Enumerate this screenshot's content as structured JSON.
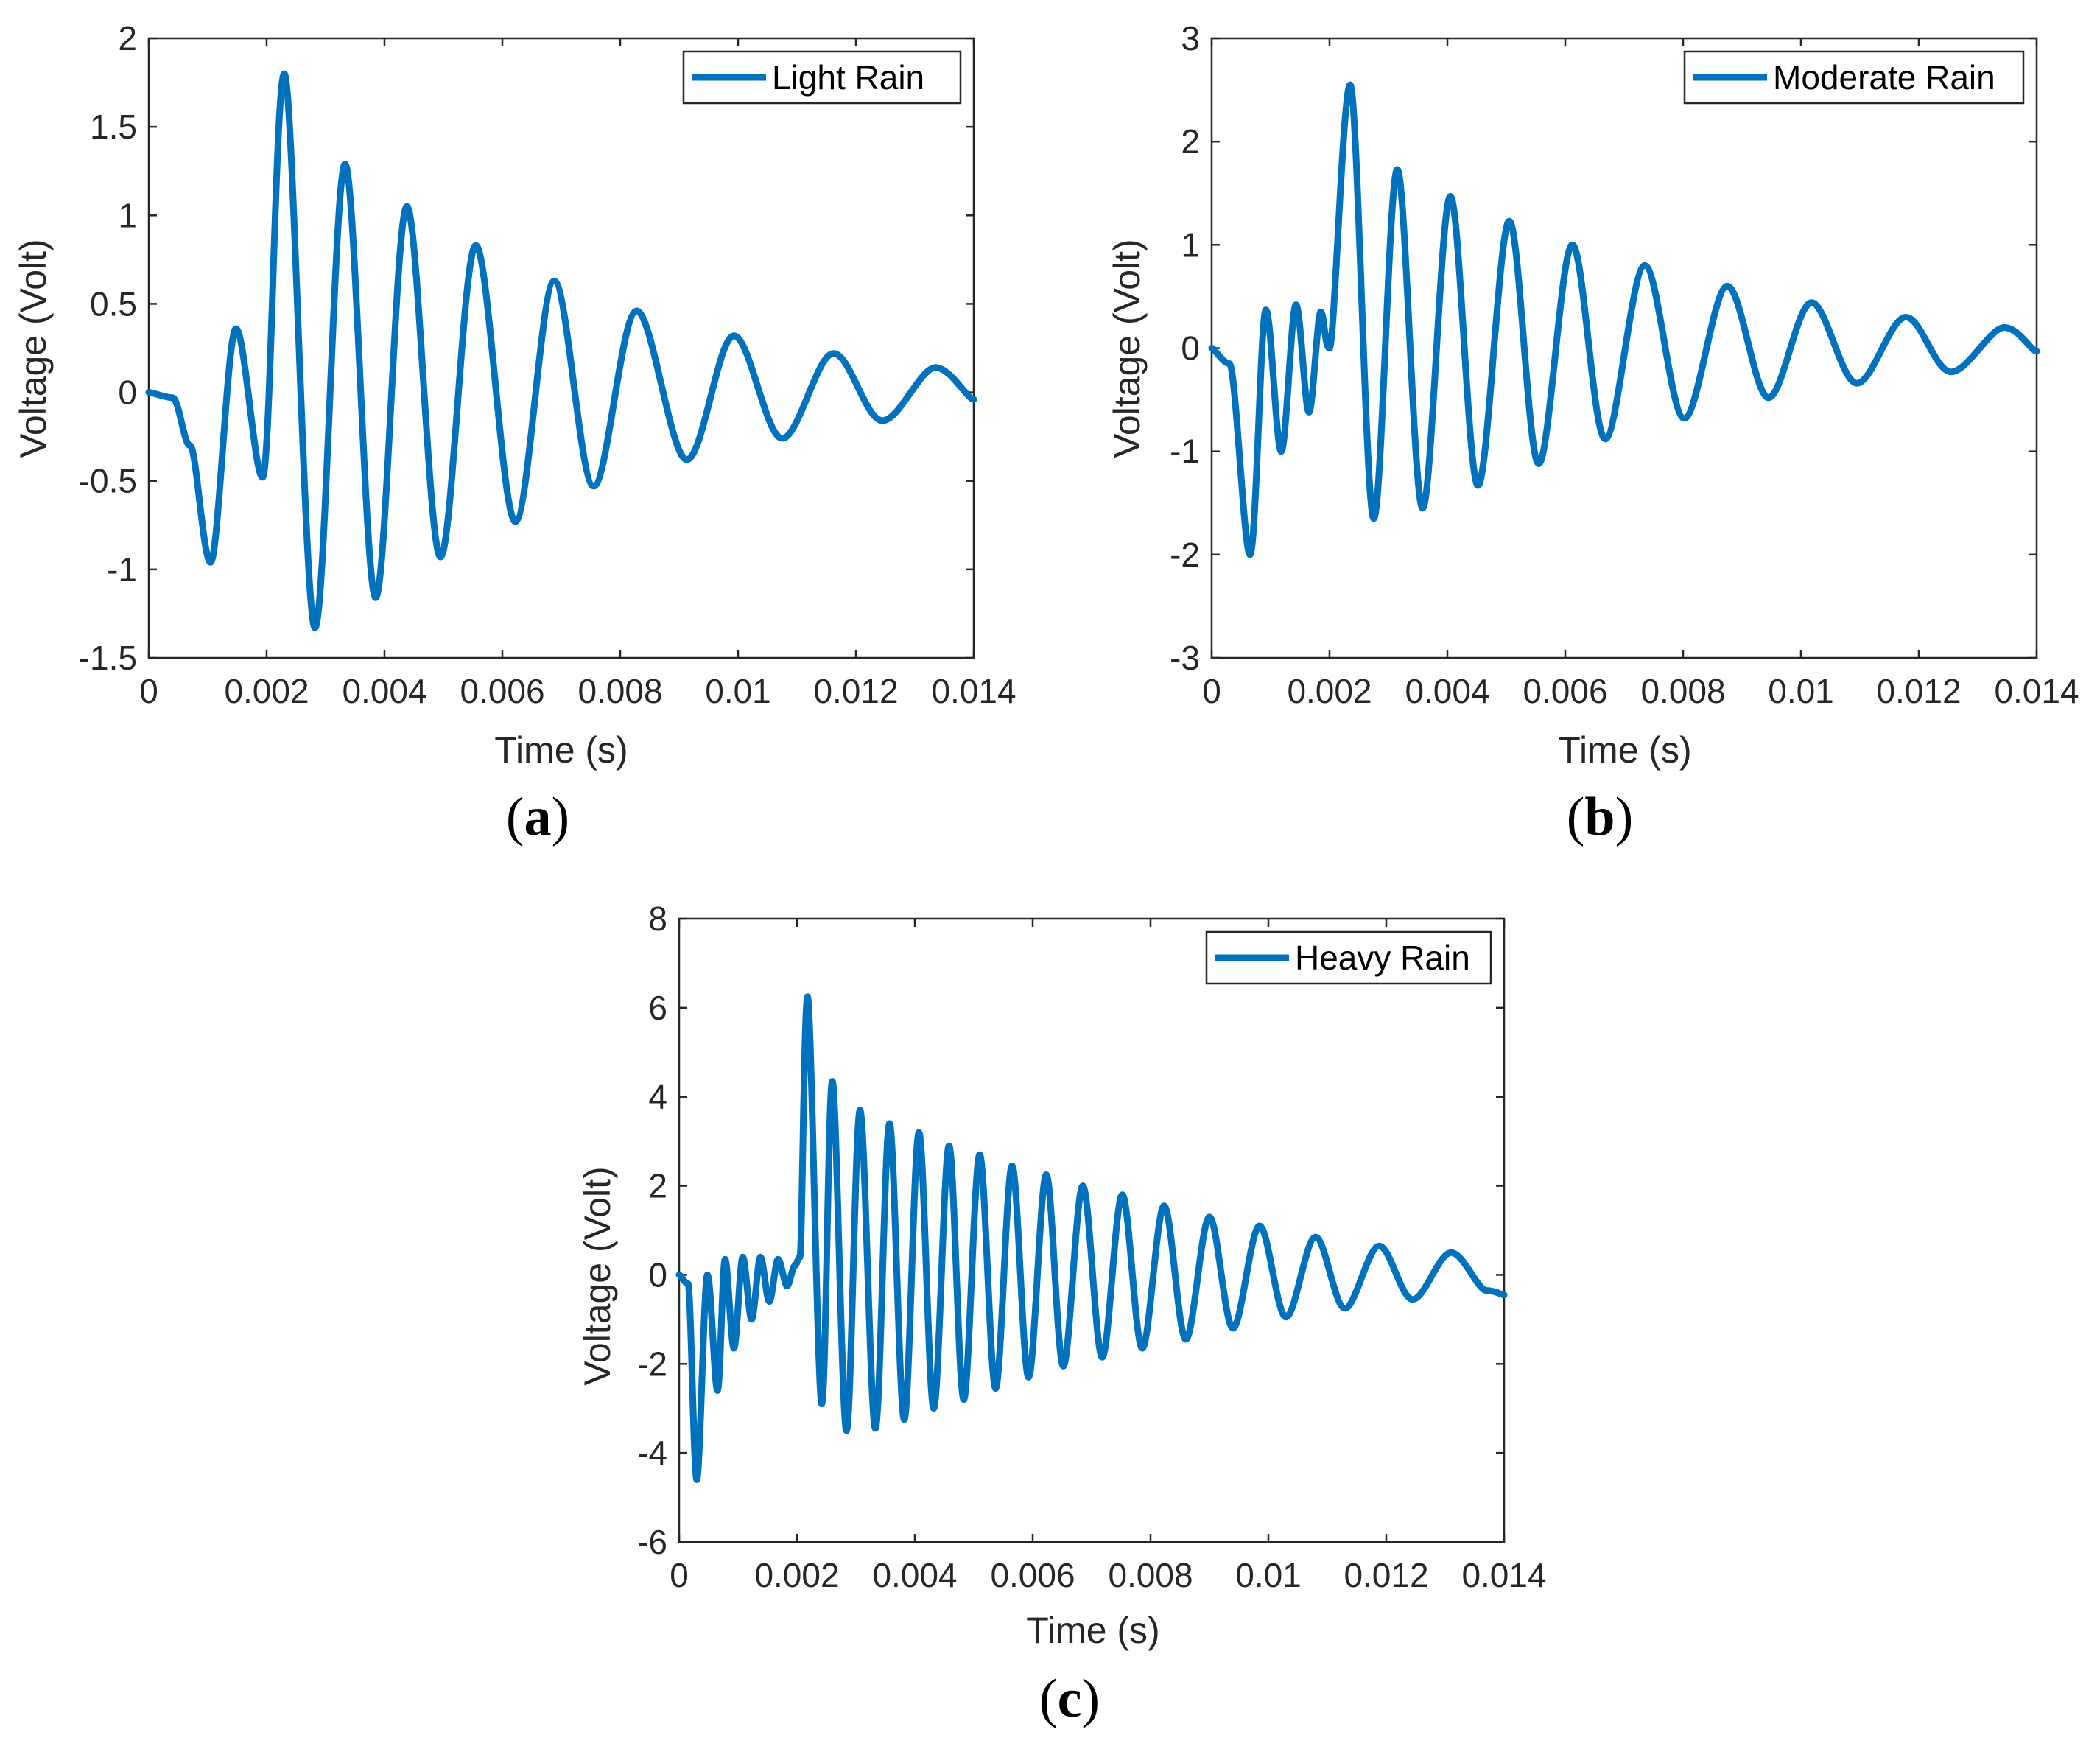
{
  "colors": {
    "series": "#0072BD",
    "axis": "#262626",
    "background": "#ffffff"
  },
  "chart_data": [
    {
      "id": "a",
      "panel_label": "a",
      "type": "line",
      "title": "",
      "xlabel": "Time (s)",
      "ylabel": "Voltage (Volt)",
      "xlim": [
        0,
        0.014
      ],
      "ylim": [
        -1.5,
        2
      ],
      "xticks": [
        0,
        0.002,
        0.004,
        0.006,
        0.008,
        0.01,
        0.012,
        0.014
      ],
      "xtick_labels": [
        "0",
        "0.002",
        "0.004",
        "0.006",
        "0.008",
        "0.01",
        "0.012",
        "0.014"
      ],
      "yticks": [
        -1.5,
        -1,
        -0.5,
        0,
        0.5,
        1,
        1.5,
        2
      ],
      "ytick_labels": [
        "-1.5",
        "-1",
        "-0.5",
        "0",
        "0.5",
        "1",
        "1.5",
        "2"
      ],
      "legend_position": "top-right",
      "series": [
        {
          "name": "Light Rain",
          "x": [
            0,
            0.0004,
            0.0007,
            0.00105,
            0.00148,
            0.00193,
            0.0023,
            0.00282,
            0.00333,
            0.00385,
            0.00438,
            0.00495,
            0.00555,
            0.00622,
            0.00688,
            0.00755,
            0.00828,
            0.00913,
            0.00993,
            0.01075,
            0.01162,
            0.01245,
            0.01335,
            0.014
          ],
          "y": [
            0,
            -0.03,
            -0.3,
            -0.96,
            0.36,
            -0.48,
            1.8,
            -1.33,
            1.29,
            -1.16,
            1.05,
            -0.93,
            0.83,
            -0.73,
            0.63,
            -0.53,
            0.46,
            -0.38,
            0.32,
            -0.26,
            0.22,
            -0.16,
            0.14,
            -0.04
          ]
        }
      ]
    },
    {
      "id": "b",
      "panel_label": "b",
      "type": "line",
      "title": "",
      "xlabel": "Time (s)",
      "ylabel": "Voltage (Volt)",
      "xlim": [
        0,
        0.014
      ],
      "ylim": [
        -3,
        3
      ],
      "xticks": [
        0,
        0.002,
        0.004,
        0.006,
        0.008,
        0.01,
        0.012,
        0.014
      ],
      "xtick_labels": [
        "0",
        "0.002",
        "0.004",
        "0.006",
        "0.008",
        "0.01",
        "0.012",
        "0.014"
      ],
      "yticks": [
        -3,
        -2,
        -1,
        0,
        1,
        2,
        3
      ],
      "ytick_labels": [
        "-3",
        "-2",
        "-1",
        "0",
        "1",
        "2",
        "3"
      ],
      "legend_position": "top-right",
      "series": [
        {
          "name": "Moderate Rain",
          "x": [
            0,
            0.0003,
            0.00065,
            0.00092,
            0.00118,
            0.00143,
            0.00165,
            0.00185,
            0.002,
            0.00235,
            0.00275,
            0.00315,
            0.00358,
            0.00405,
            0.00452,
            0.00505,
            0.00555,
            0.00612,
            0.00668,
            0.00735,
            0.00802,
            0.00875,
            0.00945,
            0.01018,
            0.01095,
            0.01178,
            0.01255,
            0.01345,
            0.014
          ],
          "y": [
            0,
            -0.15,
            -2.0,
            0.37,
            -1.0,
            0.42,
            -0.62,
            0.35,
            0.0,
            2.55,
            -1.65,
            1.73,
            -1.55,
            1.47,
            -1.33,
            1.23,
            -1.12,
            1.0,
            -0.88,
            0.8,
            -0.68,
            0.6,
            -0.48,
            0.44,
            -0.34,
            0.3,
            -0.23,
            0.2,
            -0.03
          ]
        }
      ]
    },
    {
      "id": "c",
      "panel_label": "c",
      "type": "line",
      "title": "",
      "xlabel": "Time (s)",
      "ylabel": "Voltage (Volt)",
      "xlim": [
        0,
        0.014
      ],
      "ylim": [
        -6,
        8
      ],
      "xticks": [
        0,
        0.002,
        0.004,
        0.006,
        0.008,
        0.01,
        0.012,
        0.014
      ],
      "xtick_labels": [
        "0",
        "0.002",
        "0.004",
        "0.006",
        "0.008",
        "0.01",
        "0.012",
        "0.014"
      ],
      "yticks": [
        -6,
        -4,
        -2,
        0,
        2,
        4,
        6,
        8
      ],
      "ytick_labels": [
        "-6",
        "-4",
        "-2",
        "0",
        "2",
        "4",
        "6",
        "8"
      ],
      "legend_position": "top-right",
      "series": [
        {
          "name": "Heavy Rain",
          "x": [
            0,
            0.00015,
            0.0003,
            0.00048,
            0.00065,
            0.00078,
            0.00093,
            0.00108,
            0.00123,
            0.00138,
            0.00153,
            0.00168,
            0.00183,
            0.00196,
            0.00205,
            0.00218,
            0.00242,
            0.0026,
            0.00284,
            0.00307,
            0.00333,
            0.00357,
            0.00382,
            0.00407,
            0.00432,
            0.00458,
            0.00483,
            0.0051,
            0.00537,
            0.00565,
            0.00593,
            0.00623,
            0.00652,
            0.00685,
            0.00718,
            0.00752,
            0.00786,
            0.00823,
            0.0086,
            0.009,
            0.0094,
            0.00985,
            0.0103,
            0.0108,
            0.0113,
            0.01188,
            0.01245,
            0.0131,
            0.0137,
            0.014
          ],
          "y": [
            0,
            -0.2,
            -4.6,
            0.0,
            -2.6,
            0.35,
            -1.65,
            0.4,
            -1.0,
            0.4,
            -0.6,
            0.35,
            -0.25,
            0.2,
            0.4,
            6.25,
            -2.9,
            4.35,
            -3.5,
            3.7,
            -3.45,
            3.4,
            -3.25,
            3.2,
            -3.0,
            2.9,
            -2.8,
            2.7,
            -2.55,
            2.45,
            -2.3,
            2.25,
            -2.05,
            2.0,
            -1.85,
            1.8,
            -1.65,
            1.55,
            -1.45,
            1.3,
            -1.2,
            1.1,
            -0.95,
            0.85,
            -0.75,
            0.65,
            -0.55,
            0.5,
            -0.35,
            -0.45
          ]
        }
      ]
    }
  ]
}
